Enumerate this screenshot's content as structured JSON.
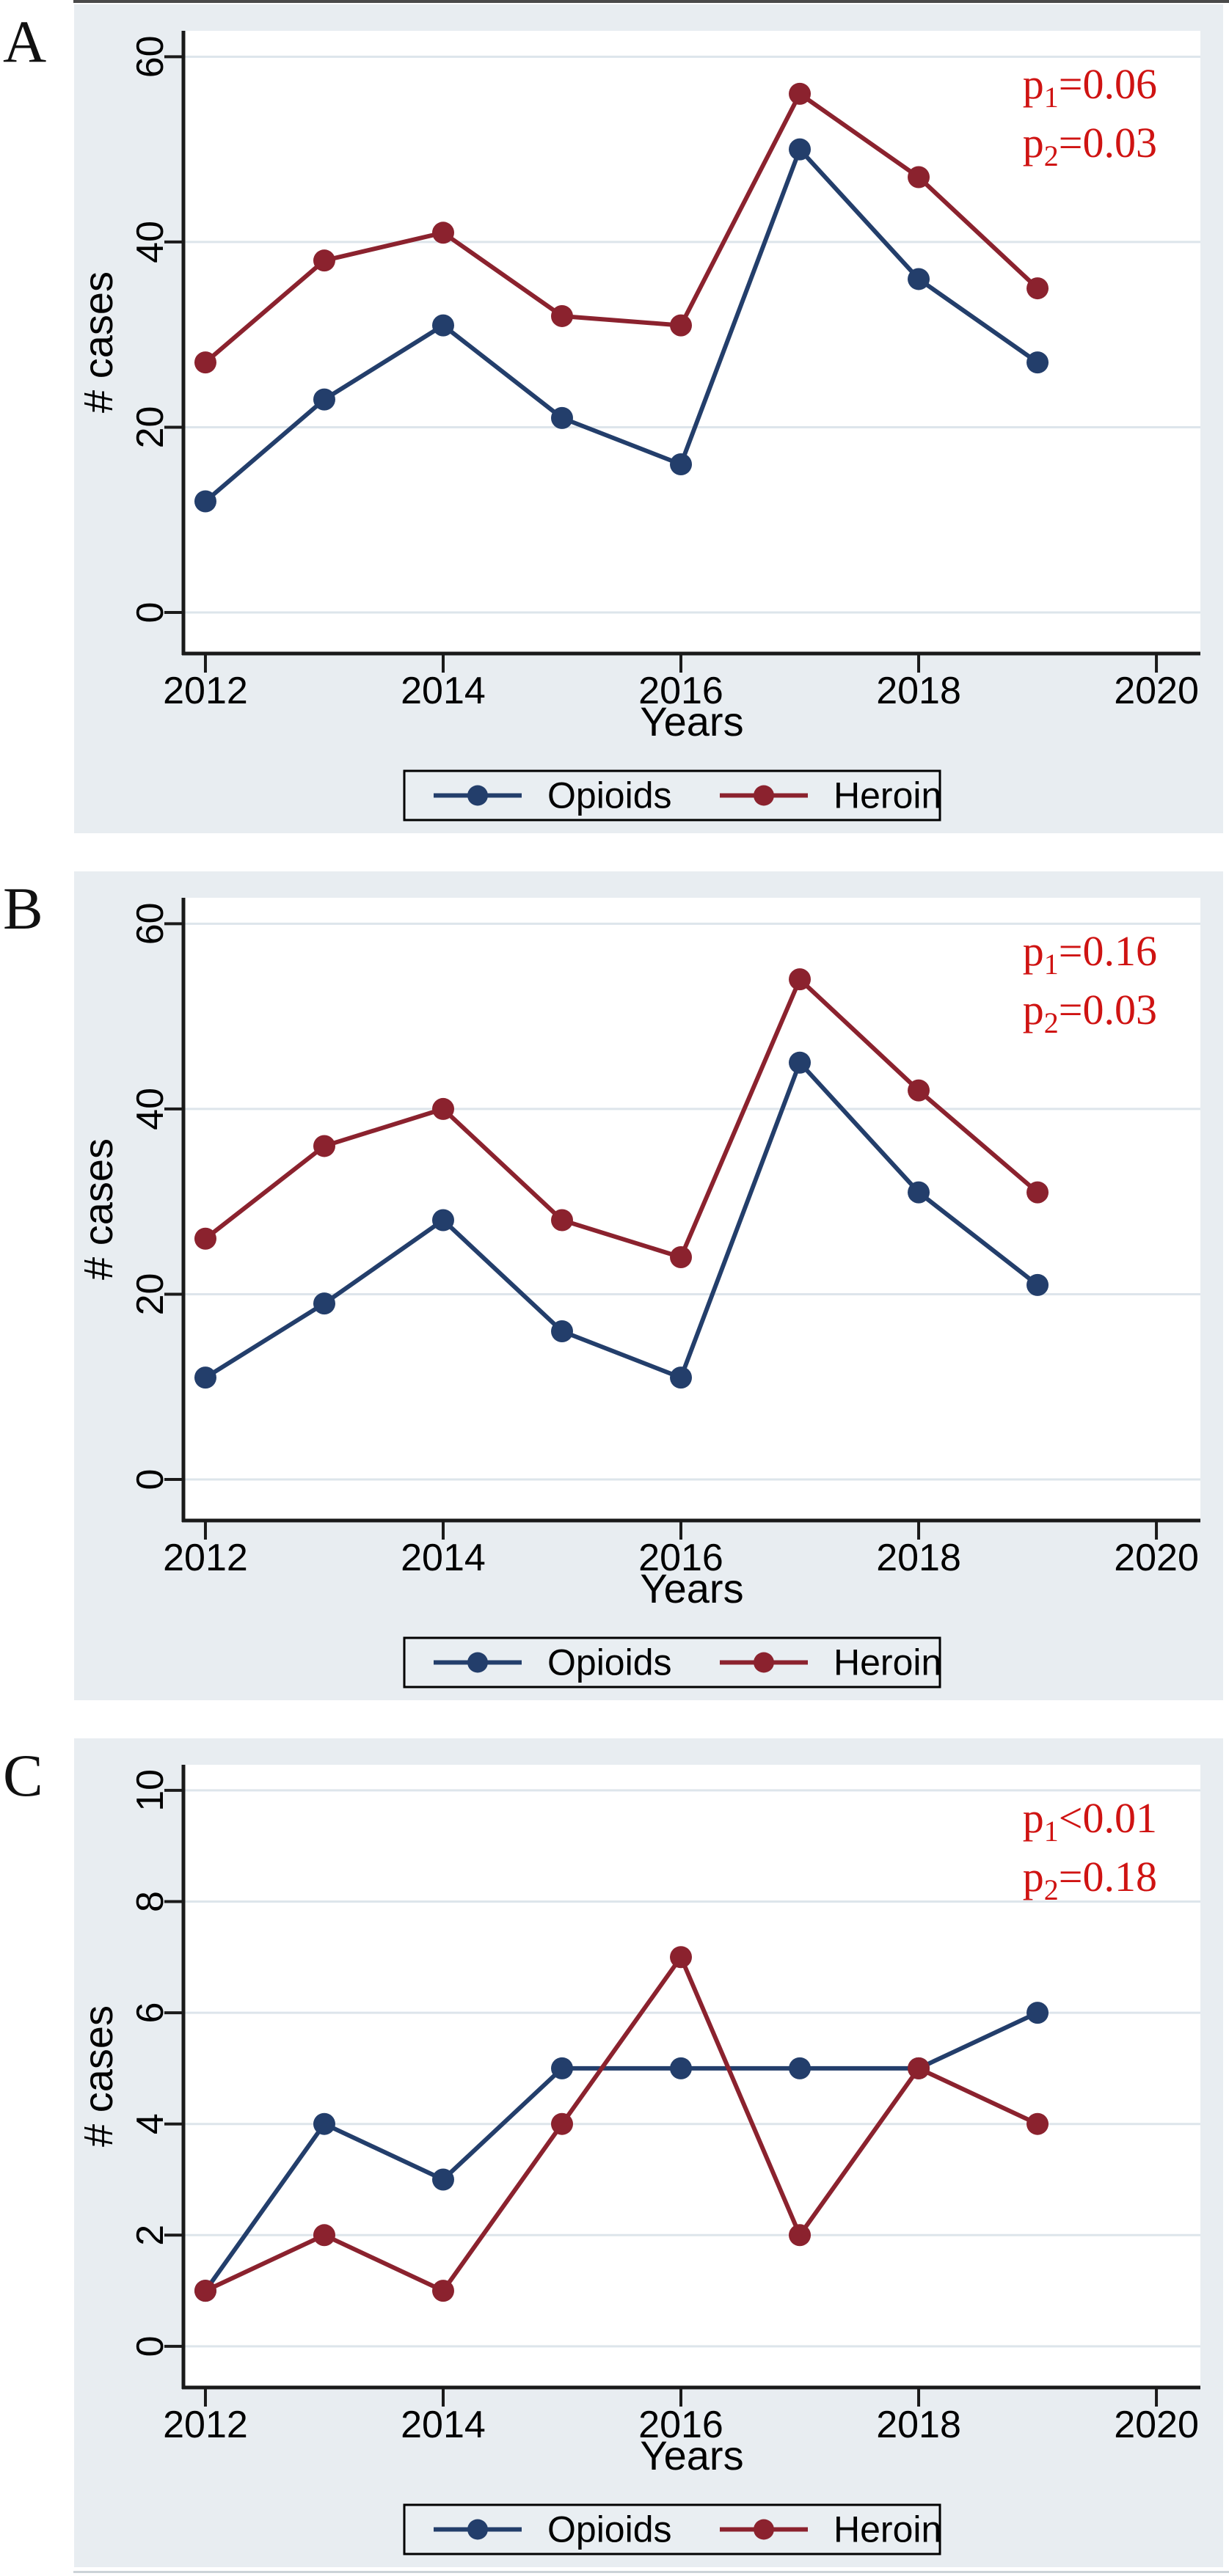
{
  "page": {
    "background": "#ffffff",
    "panel_background": "#e8edf1",
    "plot_background": "#ffffff",
    "grid_color": "#dde5eb",
    "axis_color": "#1a1a1a",
    "top_border_color": "#4a4a4a",
    "bottom_border_color": "#ccd3d8"
  },
  "chart_data": [
    {
      "type": "line",
      "panel_label": "A",
      "title": "",
      "xlabel": "Years",
      "ylabel": "# cases",
      "x": [
        2012,
        2013,
        2014,
        2015,
        2016,
        2017,
        2018,
        2019
      ],
      "series": [
        {
          "name": "Opioids",
          "color": "#233e6b",
          "values": [
            12,
            23,
            31,
            21,
            16,
            50,
            36,
            27
          ]
        },
        {
          "name": "Heroin",
          "color": "#8b222e",
          "values": [
            27,
            38,
            41,
            32,
            31,
            56,
            47,
            35
          ]
        }
      ],
      "xticks": [
        2012,
        2014,
        2016,
        2018,
        2020
      ],
      "yticks": [
        0,
        20,
        40,
        60
      ],
      "xlim": [
        2011.815,
        2020.37
      ],
      "ylim": [
        -4.43,
        62.8
      ],
      "grid": true,
      "legend_position": "bottom",
      "legend": [
        "Opioids",
        "Heroin"
      ],
      "annotations": [
        {
          "base": "p",
          "sub": "1",
          "rest": "=0.06"
        },
        {
          "base": "p",
          "sub": "2",
          "rest": "=0.03"
        }
      ],
      "annotation_color": "#cf1312"
    },
    {
      "type": "line",
      "panel_label": "B",
      "title": "",
      "xlabel": "Years",
      "ylabel": "# cases",
      "x": [
        2012,
        2013,
        2014,
        2015,
        2016,
        2017,
        2018,
        2019
      ],
      "series": [
        {
          "name": "Opioids",
          "color": "#233e6b",
          "values": [
            11,
            19,
            28,
            16,
            11,
            45,
            31,
            21
          ]
        },
        {
          "name": "Heroin",
          "color": "#8b222e",
          "values": [
            26,
            36,
            40,
            28,
            24,
            54,
            42,
            31
          ]
        }
      ],
      "xticks": [
        2012,
        2014,
        2016,
        2018,
        2020
      ],
      "yticks": [
        0,
        20,
        40,
        60
      ],
      "xlim": [
        2011.815,
        2020.37
      ],
      "ylim": [
        -4.43,
        62.8
      ],
      "grid": true,
      "legend_position": "bottom",
      "legend": [
        "Opioids",
        "Heroin"
      ],
      "annotations": [
        {
          "base": "p",
          "sub": "1",
          "rest": "=0.16"
        },
        {
          "base": "p",
          "sub": "2",
          "rest": "=0.03"
        }
      ],
      "annotation_color": "#cf1312"
    },
    {
      "type": "line",
      "panel_label": "C",
      "title": "",
      "xlabel": "Years",
      "ylabel": "# cases",
      "x": [
        2012,
        2013,
        2014,
        2015,
        2016,
        2017,
        2018,
        2019
      ],
      "series": [
        {
          "name": "Opioids",
          "color": "#233e6b",
          "values": [
            1,
            4,
            3,
            5,
            5,
            5,
            5,
            6
          ]
        },
        {
          "name": "Heroin",
          "color": "#8b222e",
          "values": [
            1,
            2,
            1,
            4,
            7,
            2,
            5,
            4
          ]
        }
      ],
      "xticks": [
        2012,
        2014,
        2016,
        2018,
        2020
      ],
      "yticks": [
        0,
        2,
        4,
        6,
        8,
        10
      ],
      "xlim": [
        2011.815,
        2020.37
      ],
      "ylim": [
        -0.74,
        10.46
      ],
      "grid": true,
      "legend_position": "bottom",
      "legend": [
        "Opioids",
        "Heroin"
      ],
      "annotations": [
        {
          "base": "p",
          "sub": "1",
          "rest": "<0.01"
        },
        {
          "base": "p",
          "sub": "2",
          "rest": "=0.18"
        }
      ],
      "annotation_color": "#cf1312"
    }
  ]
}
